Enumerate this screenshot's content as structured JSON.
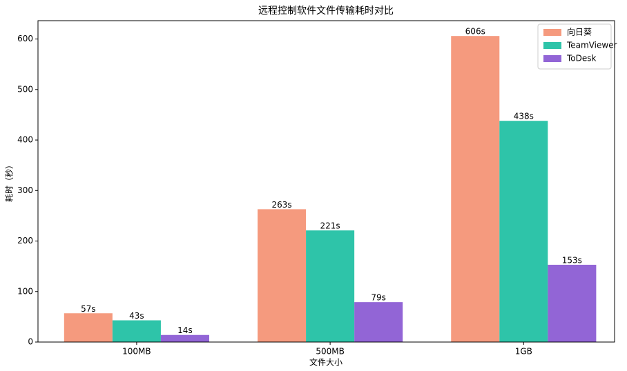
{
  "chart_data": {
    "type": "bar",
    "title": "远程控制软件文件传输耗时对比",
    "x_label": "文件大小",
    "y_label": "耗时（秒）",
    "categories": [
      "100MB",
      "500MB",
      "1GB"
    ],
    "series": [
      {
        "name": "向日葵",
        "color": "#f59a7e",
        "values": [
          57,
          263,
          606
        ],
        "value_labels": [
          "57s",
          "263s",
          "606s"
        ]
      },
      {
        "name": "TeamViewer",
        "color": "#2ec4a9",
        "values": [
          43,
          221,
          438
        ],
        "value_labels": [
          "43s",
          "221s",
          "438s"
        ]
      },
      {
        "name": "ToDesk",
        "color": "#9265d6",
        "values": [
          14,
          79,
          153
        ],
        "value_labels": [
          "14s",
          "79s",
          "153s"
        ]
      }
    ],
    "ylim": [
      0,
      636.3
    ],
    "yticks": [
      0,
      100,
      200,
      300,
      400,
      500,
      600
    ],
    "legend": "upper right"
  }
}
